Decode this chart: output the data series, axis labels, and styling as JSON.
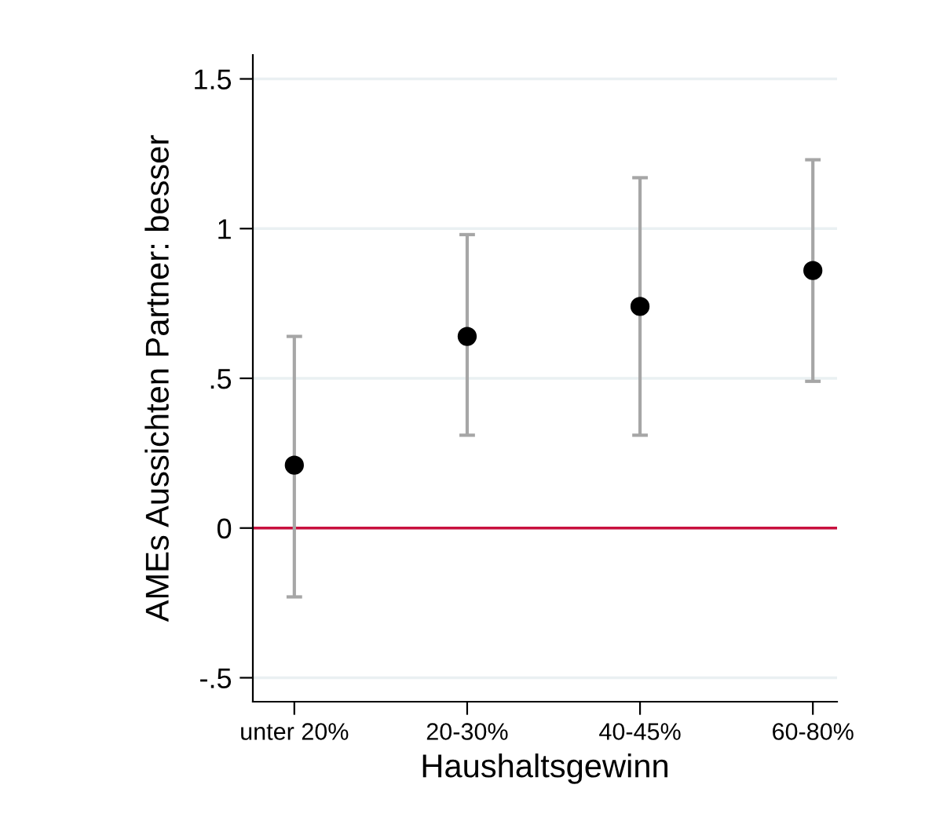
{
  "chart_data": {
    "type": "scatter",
    "xlabel": "Haushaltsgewinn",
    "ylabel": "AMEs Aussichten Partner: besser",
    "categories": [
      "unter 20%",
      "20-30%",
      "40-45%",
      "60-80%"
    ],
    "series": [
      {
        "color": "#000000",
        "values": [
          0.21,
          0.64,
          0.74,
          0.86
        ],
        "errors": [
          [
            -0.23,
            0.64
          ],
          [
            0.31,
            0.98
          ],
          [
            0.31,
            1.17
          ],
          [
            0.49,
            1.23
          ]
        ]
      }
    ],
    "ylim": [
      -0.58,
      1.58
    ],
    "yticks": [
      {
        "value": -0.5,
        "label": "-.5"
      },
      0,
      {
        "value": 0.5,
        "label": ".5"
      },
      1,
      1.5
    ],
    "ref_lines": [
      {
        "axis": "y",
        "value": 0,
        "color": "#c8103e"
      }
    ],
    "grid": "y",
    "marker": "circle",
    "legend": false
  }
}
